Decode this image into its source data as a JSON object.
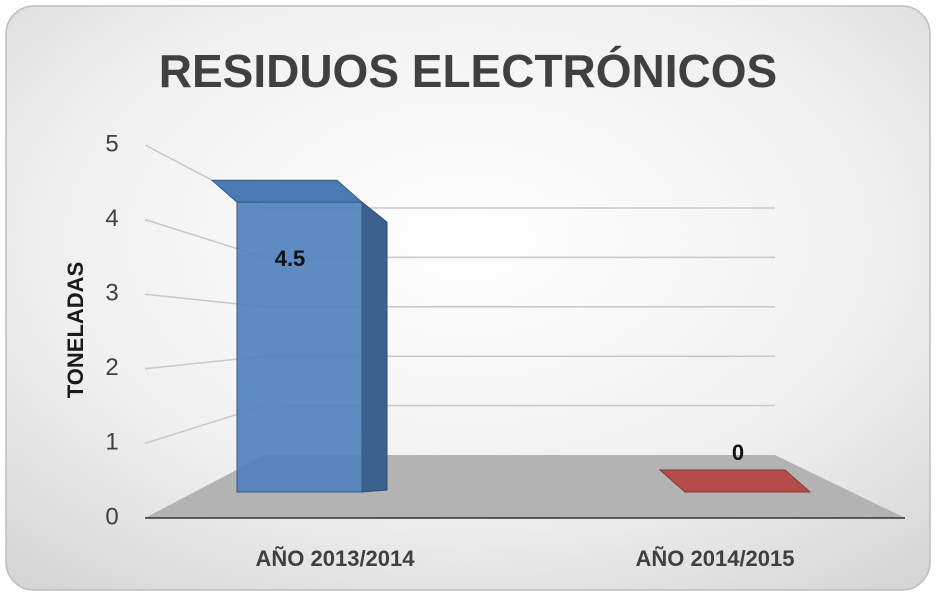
{
  "chart_data": {
    "type": "bar3d",
    "title": "RESIDUOS ELECTRÓNICOS",
    "y_label": "TONELADAS",
    "categories": [
      "AÑO 2013/2014",
      "AÑO 2014/2015"
    ],
    "values": [
      4.5,
      0
    ],
    "colors": [
      "#4f81bd",
      "#c0504d"
    ],
    "ylim": [
      0,
      5
    ],
    "yticks": [
      0,
      1,
      2,
      3,
      4,
      5
    ],
    "grid": true
  }
}
